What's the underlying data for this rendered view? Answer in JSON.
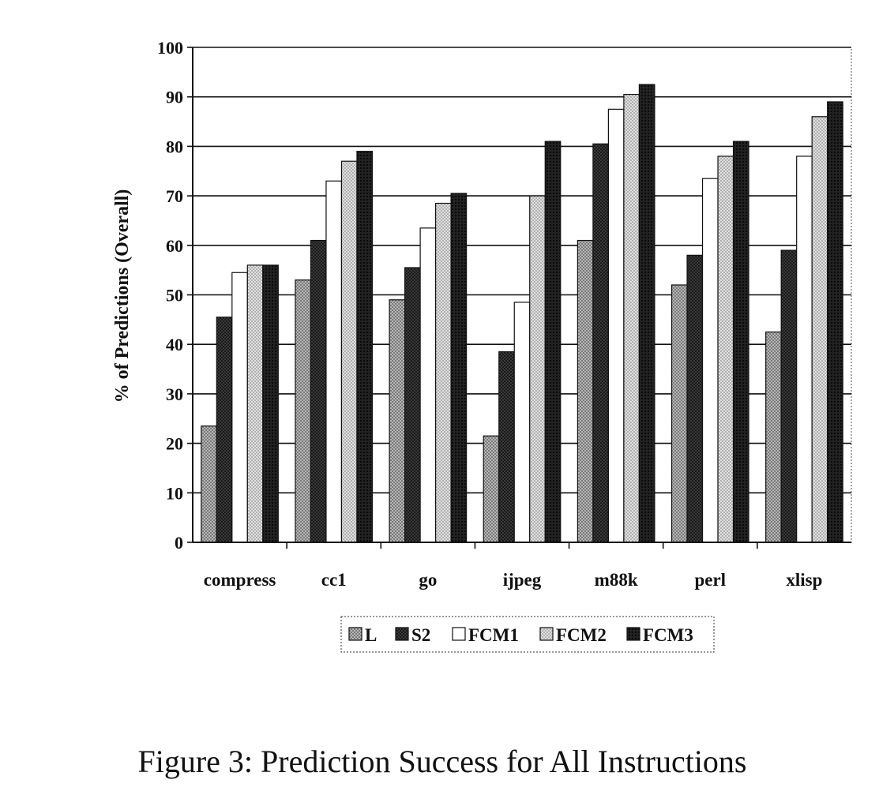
{
  "chart_data": {
    "type": "bar",
    "ylabel": "% of Predictions (Overall)",
    "xlabel": "",
    "ylim": [
      0,
      100
    ],
    "yticks": [
      0,
      10,
      20,
      30,
      40,
      50,
      60,
      70,
      80,
      90,
      100
    ],
    "grid": true,
    "legend_position": "bottom-center",
    "categories": [
      "compress",
      "cc1",
      "go",
      "ijpeg",
      "m88k",
      "perl",
      "xlisp"
    ],
    "series": [
      {
        "name": "L",
        "color": "#9a9a9a",
        "values": [
          23.5,
          53,
          49,
          21.5,
          61,
          52,
          42.5
        ]
      },
      {
        "name": "S2",
        "color": "#2e2e2e",
        "values": [
          45.5,
          61,
          55.5,
          38.5,
          80.5,
          58,
          59
        ]
      },
      {
        "name": "FCM1",
        "color": "#ffffff",
        "values": [
          54.5,
          73,
          63.5,
          48.5,
          87.5,
          73.5,
          78
        ]
      },
      {
        "name": "FCM2",
        "color": "#cfcfcf",
        "values": [
          56,
          77,
          68.5,
          70,
          90.5,
          78,
          86
        ]
      },
      {
        "name": "FCM3",
        "color": "#1a1a1a",
        "values": [
          56,
          79,
          70.5,
          81,
          92.5,
          81,
          89
        ]
      }
    ]
  },
  "caption": "Figure 3: Prediction Success for All Instructions"
}
